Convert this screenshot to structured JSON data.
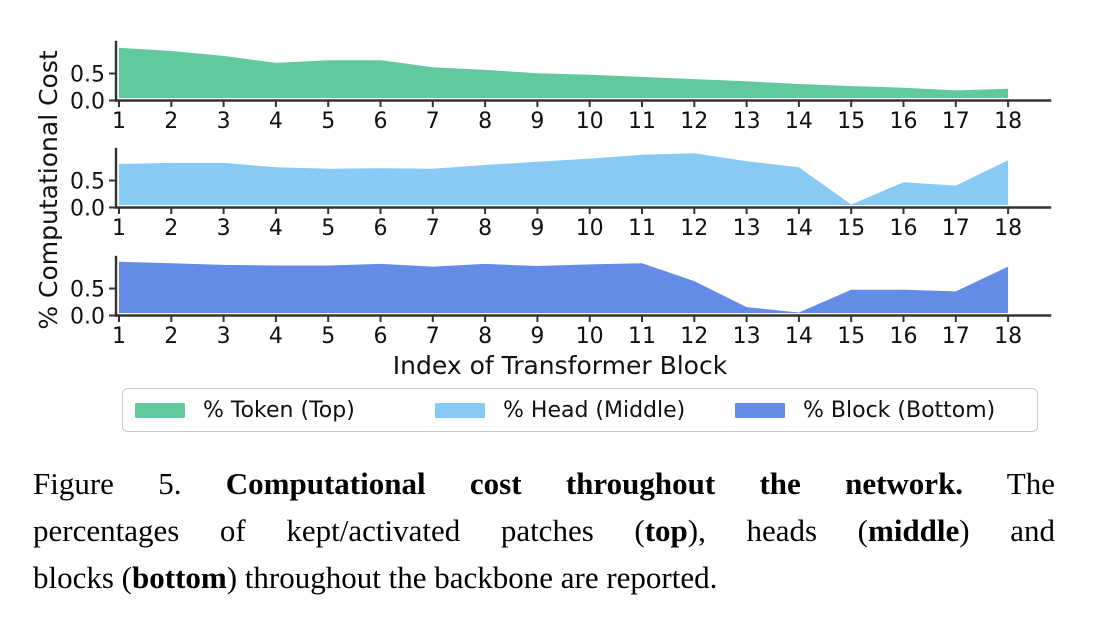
{
  "chart_data": {
    "type": "area",
    "layout": "three vertically stacked area subplots sharing the same x categories",
    "xlabel": "Index of Transformer Block",
    "ylabel": "% Computational Cost",
    "categories": [
      1,
      2,
      3,
      4,
      5,
      6,
      7,
      8,
      9,
      10,
      11,
      12,
      13,
      14,
      15,
      16,
      17,
      18
    ],
    "ytick_labels": [
      "0.0",
      "0.5"
    ],
    "ylim": [
      0,
      1.05
    ],
    "grid": false,
    "legend_position": "bottom",
    "series": [
      {
        "name": "% Token (Top)",
        "subplot": "top",
        "color": "#62C99E",
        "values": [
          0.93,
          0.87,
          0.78,
          0.65,
          0.7,
          0.7,
          0.57,
          0.52,
          0.46,
          0.43,
          0.39,
          0.35,
          0.31,
          0.26,
          0.22,
          0.19,
          0.14,
          0.17
        ]
      },
      {
        "name": "% Head (Middle)",
        "subplot": "middle",
        "color": "#87CBF5",
        "values": [
          0.76,
          0.78,
          0.78,
          0.7,
          0.67,
          0.68,
          0.67,
          0.74,
          0.8,
          0.86,
          0.93,
          0.96,
          0.81,
          0.7,
          0.01,
          0.42,
          0.36,
          0.83
        ]
      },
      {
        "name": "% Block (Bottom)",
        "subplot": "bottom",
        "color": "#648CE6",
        "values": [
          0.95,
          0.92,
          0.89,
          0.88,
          0.88,
          0.91,
          0.86,
          0.91,
          0.87,
          0.9,
          0.92,
          0.59,
          0.11,
          0.01,
          0.43,
          0.43,
          0.4,
          0.86
        ]
      }
    ]
  },
  "caption": {
    "lines": [
      {
        "segments": [
          {
            "text": "Figure 5.  ",
            "bold": false
          },
          {
            "text": "Computational cost throughout the network.",
            "bold": true
          },
          {
            "text": "  The",
            "bold": false
          }
        ]
      },
      {
        "segments": [
          {
            "text": "percentages of kept/activated patches (",
            "bold": false
          },
          {
            "text": "top",
            "bold": true
          },
          {
            "text": "), heads (",
            "bold": false
          },
          {
            "text": "middle",
            "bold": true
          },
          {
            "text": ") and",
            "bold": false
          }
        ]
      },
      {
        "segments": [
          {
            "text": "blocks (",
            "bold": false
          },
          {
            "text": "bottom",
            "bold": true
          },
          {
            "text": ") throughout the backbone are reported.",
            "bold": false
          }
        ]
      }
    ]
  }
}
